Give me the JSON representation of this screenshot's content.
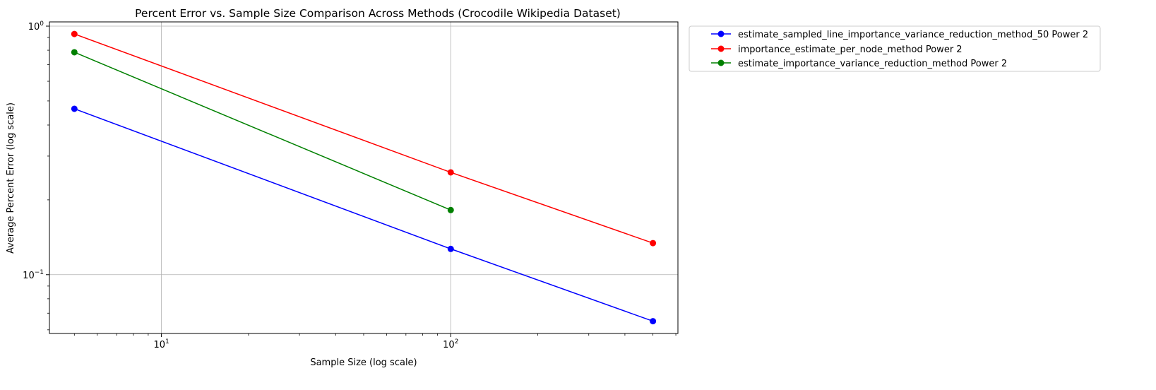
{
  "chart_data": {
    "type": "line",
    "title": "Percent Error vs. Sample Size Comparison Across Methods (Crocodile Wikipedia Dataset)",
    "xlabel": "Sample Size (log scale)",
    "ylabel": "Average Percent Error (log scale)",
    "xscale": "log",
    "yscale": "log",
    "xlim": [
      4.1,
      610
    ],
    "ylim": [
      0.058,
      1.04
    ],
    "grid": true,
    "legend_position": "outside-top-right",
    "x_tick_labels": [
      {
        "base": "10",
        "exp": "1",
        "value": 10
      },
      {
        "base": "10",
        "exp": "2",
        "value": 100
      }
    ],
    "y_tick_labels": [
      {
        "base": "10",
        "exp": "0",
        "value": 1
      },
      {
        "base": "10",
        "exp": "−1",
        "value": 0.1
      }
    ],
    "series": [
      {
        "name": "estimate_sampled_line_importance_variance_reduction_method_50 Power 2",
        "color": "#0000ff",
        "x": [
          5,
          100,
          500
        ],
        "y": [
          0.465,
          0.127,
          0.065
        ]
      },
      {
        "name": "importance_estimate_per_node_method Power 2",
        "color": "#ff0000",
        "x": [
          5,
          100,
          500
        ],
        "y": [
          0.93,
          0.258,
          0.134
        ]
      },
      {
        "name": "estimate_importance_variance_reduction_method Power 2",
        "color": "#008000",
        "x": [
          5,
          100
        ],
        "y": [
          0.785,
          0.182
        ]
      }
    ]
  }
}
